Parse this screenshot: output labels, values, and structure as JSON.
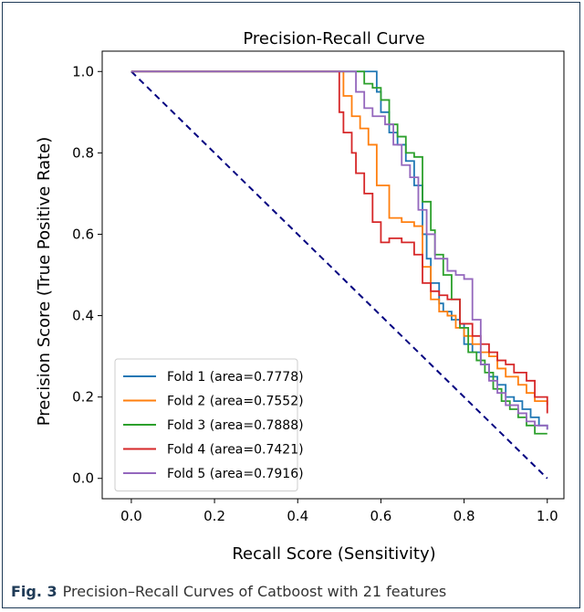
{
  "chart_data": {
    "type": "line",
    "title": "Precision-Recall Curve",
    "xlabel": "Recall Score (Sensitivity)",
    "ylabel": "Precision Score (True Positive Rate)",
    "xlim": [
      -0.07,
      1.04
    ],
    "ylim": [
      -0.05,
      1.05
    ],
    "xticks": [
      "0.0",
      "0.2",
      "0.4",
      "0.6",
      "0.8",
      "1.0"
    ],
    "yticks": [
      "0.0",
      "0.2",
      "0.4",
      "0.6",
      "0.8",
      "1.0"
    ],
    "grid": false,
    "legend_position": "lower-left",
    "baseline": {
      "x": [
        0,
        1
      ],
      "y": [
        1,
        0
      ],
      "color": "#000080",
      "style": "dashed"
    },
    "series": [
      {
        "name": "Fold 1 (area=0.7778)",
        "color": "#1f77b4",
        "x": [
          0,
          0.57,
          0.59,
          0.6,
          0.62,
          0.64,
          0.66,
          0.68,
          0.7,
          0.71,
          0.72,
          0.74,
          0.75,
          0.77,
          0.79,
          0.8,
          0.82,
          0.84,
          0.86,
          0.88,
          0.9,
          0.92,
          0.94,
          0.96,
          0.98,
          1.0
        ],
        "y": [
          1.0,
          1.0,
          0.95,
          0.9,
          0.85,
          0.82,
          0.78,
          0.72,
          0.6,
          0.54,
          0.48,
          0.43,
          0.41,
          0.39,
          0.38,
          0.33,
          0.31,
          0.28,
          0.25,
          0.23,
          0.2,
          0.19,
          0.17,
          0.15,
          0.13,
          0.12
        ]
      },
      {
        "name": "Fold 2 (area=0.7552)",
        "color": "#ff7f0e",
        "x": [
          0,
          0.5,
          0.51,
          0.53,
          0.55,
          0.57,
          0.59,
          0.62,
          0.65,
          0.68,
          0.7,
          0.72,
          0.74,
          0.76,
          0.78,
          0.8,
          0.82,
          0.84,
          0.86,
          0.88,
          0.9,
          0.93,
          0.95,
          0.97,
          1.0
        ],
        "y": [
          1.0,
          1.0,
          0.94,
          0.89,
          0.86,
          0.82,
          0.72,
          0.64,
          0.63,
          0.62,
          0.52,
          0.44,
          0.41,
          0.4,
          0.37,
          0.35,
          0.33,
          0.31,
          0.3,
          0.27,
          0.25,
          0.23,
          0.21,
          0.19,
          0.18
        ]
      },
      {
        "name": "Fold 3 (area=0.7888)",
        "color": "#2ca02c",
        "x": [
          0,
          0.55,
          0.56,
          0.58,
          0.6,
          0.62,
          0.64,
          0.66,
          0.68,
          0.7,
          0.72,
          0.73,
          0.75,
          0.77,
          0.79,
          0.81,
          0.83,
          0.85,
          0.87,
          0.89,
          0.91,
          0.93,
          0.95,
          0.97,
          1.0
        ],
        "y": [
          1.0,
          1.0,
          0.97,
          0.96,
          0.93,
          0.87,
          0.84,
          0.8,
          0.79,
          0.68,
          0.61,
          0.55,
          0.5,
          0.44,
          0.37,
          0.31,
          0.29,
          0.26,
          0.22,
          0.19,
          0.17,
          0.15,
          0.13,
          0.11,
          0.11
        ]
      },
      {
        "name": "Fold 4 (area=0.7421)",
        "color": "#d62728",
        "x": [
          0,
          0.49,
          0.5,
          0.51,
          0.53,
          0.54,
          0.56,
          0.58,
          0.6,
          0.62,
          0.65,
          0.68,
          0.7,
          0.72,
          0.74,
          0.76,
          0.79,
          0.82,
          0.84,
          0.86,
          0.88,
          0.9,
          0.92,
          0.95,
          0.97,
          1.0
        ],
        "y": [
          1.0,
          1.0,
          0.9,
          0.85,
          0.8,
          0.75,
          0.7,
          0.63,
          0.58,
          0.59,
          0.58,
          0.55,
          0.48,
          0.46,
          0.45,
          0.44,
          0.38,
          0.35,
          0.33,
          0.31,
          0.29,
          0.28,
          0.26,
          0.24,
          0.2,
          0.16
        ]
      },
      {
        "name": "Fold 5 (area=0.7916)",
        "color": "#9467bd",
        "x": [
          0,
          0.53,
          0.54,
          0.56,
          0.58,
          0.61,
          0.63,
          0.65,
          0.67,
          0.69,
          0.71,
          0.73,
          0.76,
          0.78,
          0.8,
          0.82,
          0.84,
          0.86,
          0.88,
          0.9,
          0.93,
          0.95,
          0.97,
          1.0
        ],
        "y": [
          1.0,
          1.0,
          0.95,
          0.91,
          0.89,
          0.87,
          0.82,
          0.77,
          0.74,
          0.66,
          0.6,
          0.54,
          0.51,
          0.5,
          0.49,
          0.39,
          0.28,
          0.24,
          0.21,
          0.18,
          0.16,
          0.14,
          0.13,
          0.12
        ]
      }
    ]
  },
  "caption": {
    "label": "Fig. 3",
    "text": "Precision–Recall Curves of Catboost with 21 features"
  }
}
